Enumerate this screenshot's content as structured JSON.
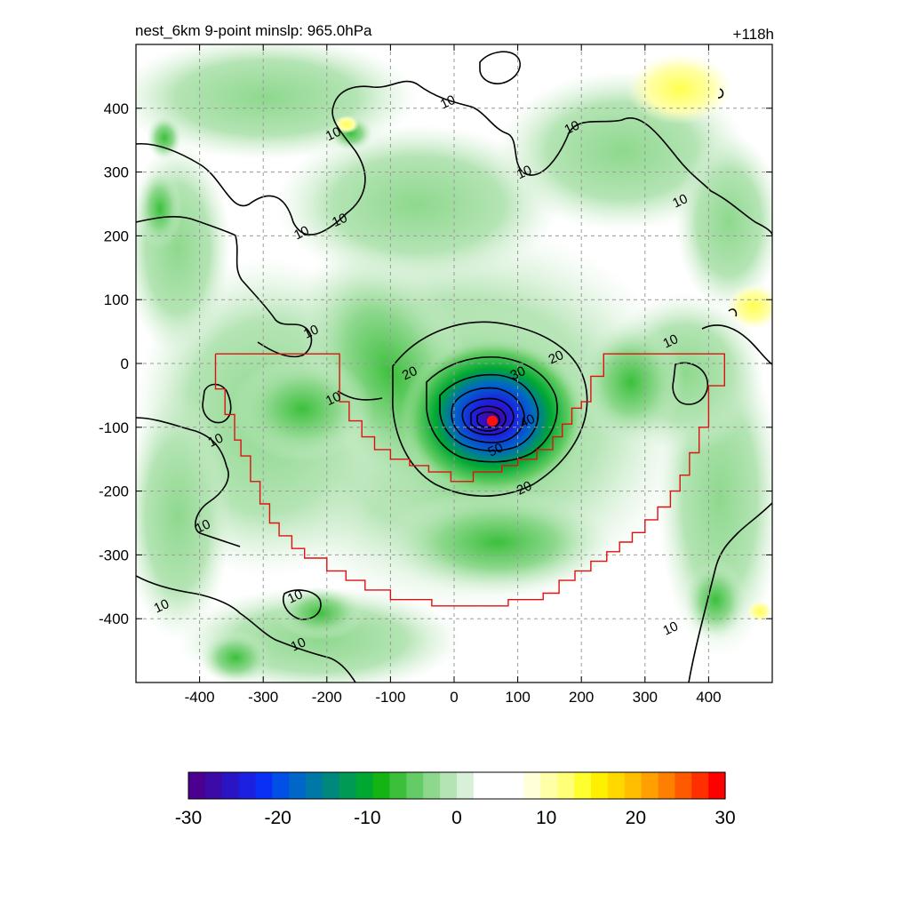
{
  "title_left": "nest_6km  9-point minslp: 965.0hPa",
  "title_right": "+118h",
  "chart_data": {
    "type": "heatmap",
    "xlim": [
      -500,
      500
    ],
    "ylim": [
      -500,
      500
    ],
    "x_ticks": [
      -400,
      -300,
      -200,
      -100,
      0,
      100,
      200,
      300,
      400
    ],
    "y_ticks": [
      400,
      300,
      200,
      100,
      0,
      -100,
      -200,
      -300,
      -400
    ],
    "grid": true,
    "colorbar": {
      "min": -30,
      "max": 30,
      "ticks": [
        "-30",
        "-20",
        "-10",
        "0",
        "10",
        "20",
        "30"
      ],
      "colors": [
        "#4b0092",
        "#3c0aa6",
        "#2a14c4",
        "#1c20e0",
        "#0a30f6",
        "#0050e6",
        "#0066c8",
        "#0078a6",
        "#00887c",
        "#009a55",
        "#00a832",
        "#14b414",
        "#3cc03c",
        "#64cc64",
        "#8ed88e",
        "#b4e4b4",
        "#d8f0d8",
        "#ffffff",
        "#ffffff",
        "#ffffff",
        "#ffffd8",
        "#ffffa8",
        "#ffff78",
        "#ffff30",
        "#ffef00",
        "#ffd800",
        "#ffbe00",
        "#ffa000",
        "#ff8000",
        "#ff5a00",
        "#ff2f00",
        "#ff0000"
      ]
    },
    "contour_labels": [
      {
        "x": -10,
        "y": 410,
        "text": "10"
      },
      {
        "x": -190,
        "y": 360,
        "text": "10"
      },
      {
        "x": -240,
        "y": 205,
        "text": "10"
      },
      {
        "x": -225,
        "y": 50,
        "text": "10"
      },
      {
        "x": -180,
        "y": 225,
        "text": "10"
      },
      {
        "x": 110,
        "y": 300,
        "text": "10"
      },
      {
        "x": 185,
        "y": 370,
        "text": "10"
      },
      {
        "x": 355,
        "y": 255,
        "text": "10"
      },
      {
        "x": 340,
        "y": 35,
        "text": "10"
      },
      {
        "x": -190,
        "y": -55,
        "text": "10"
      },
      {
        "x": -375,
        "y": -120,
        "text": "10"
      },
      {
        "x": -395,
        "y": -255,
        "text": "10"
      },
      {
        "x": -250,
        "y": -365,
        "text": "10"
      },
      {
        "x": -245,
        "y": -440,
        "text": "10"
      },
      {
        "x": -460,
        "y": -380,
        "text": "10"
      },
      {
        "x": 340,
        "y": -415,
        "text": "10"
      },
      {
        "x": -70,
        "y": -15,
        "text": "20"
      },
      {
        "x": 160,
        "y": 10,
        "text": "20"
      },
      {
        "x": 110,
        "y": -195,
        "text": "20"
      },
      {
        "x": 100,
        "y": -15,
        "text": "30"
      },
      {
        "x": 115,
        "y": -90,
        "text": "40"
      },
      {
        "x": 65,
        "y": -135,
        "text": "50"
      }
    ],
    "storm_center": {
      "x": 60,
      "y": -90
    },
    "boundary_polygon": [
      [
        -375,
        15
      ],
      [
        -180,
        15
      ],
      [
        -180,
        -60
      ],
      [
        -165,
        -60
      ],
      [
        -165,
        -90
      ],
      [
        -145,
        -90
      ],
      [
        -145,
        -115
      ],
      [
        -125,
        -115
      ],
      [
        -125,
        -135
      ],
      [
        -100,
        -135
      ],
      [
        -100,
        -150
      ],
      [
        -70,
        -150
      ],
      [
        -70,
        -160
      ],
      [
        -40,
        -160
      ],
      [
        -40,
        -170
      ],
      [
        -5,
        -170
      ],
      [
        -5,
        -185
      ],
      [
        30,
        -185
      ],
      [
        30,
        -170
      ],
      [
        75,
        -170
      ],
      [
        75,
        -160
      ],
      [
        100,
        -160
      ],
      [
        100,
        -150
      ],
      [
        130,
        -150
      ],
      [
        130,
        -135
      ],
      [
        155,
        -135
      ],
      [
        155,
        -115
      ],
      [
        170,
        -115
      ],
      [
        170,
        -95
      ],
      [
        185,
        -95
      ],
      [
        185,
        -70
      ],
      [
        200,
        -70
      ],
      [
        200,
        -60
      ],
      [
        215,
        -60
      ],
      [
        215,
        -20
      ],
      [
        235,
        -20
      ],
      [
        235,
        15
      ],
      [
        425,
        15
      ],
      [
        425,
        -35
      ],
      [
        400,
        -35
      ],
      [
        400,
        -100
      ],
      [
        385,
        -100
      ],
      [
        385,
        -140
      ],
      [
        370,
        -140
      ],
      [
        370,
        -175
      ],
      [
        355,
        -175
      ],
      [
        355,
        -200
      ],
      [
        340,
        -200
      ],
      [
        340,
        -225
      ],
      [
        320,
        -225
      ],
      [
        320,
        -245
      ],
      [
        300,
        -245
      ],
      [
        300,
        -265
      ],
      [
        280,
        -265
      ],
      [
        280,
        -280
      ],
      [
        260,
        -280
      ],
      [
        260,
        -295
      ],
      [
        240,
        -295
      ],
      [
        240,
        -310
      ],
      [
        215,
        -310
      ],
      [
        215,
        -325
      ],
      [
        190,
        -325
      ],
      [
        190,
        -340
      ],
      [
        165,
        -340
      ],
      [
        165,
        -360
      ],
      [
        140,
        -360
      ],
      [
        140,
        -370
      ],
      [
        85,
        -370
      ],
      [
        85,
        -380
      ],
      [
        -35,
        -380
      ],
      [
        -35,
        -370
      ],
      [
        -100,
        -370
      ],
      [
        -100,
        -355
      ],
      [
        -140,
        -355
      ],
      [
        -140,
        -340
      ],
      [
        -170,
        -340
      ],
      [
        -170,
        -325
      ],
      [
        -200,
        -325
      ],
      [
        -200,
        -305
      ],
      [
        -235,
        -305
      ],
      [
        -235,
        -290
      ],
      [
        -255,
        -290
      ],
      [
        -255,
        -270
      ],
      [
        -275,
        -270
      ],
      [
        -275,
        -250
      ],
      [
        -290,
        -250
      ],
      [
        -290,
        -220
      ],
      [
        -305,
        -220
      ],
      [
        -305,
        -185
      ],
      [
        -320,
        -185
      ],
      [
        -320,
        -145
      ],
      [
        -335,
        -145
      ],
      [
        -335,
        -120
      ],
      [
        -345,
        -120
      ],
      [
        -345,
        -80
      ],
      [
        -360,
        -80
      ],
      [
        -360,
        -40
      ],
      [
        -375,
        -40
      ],
      [
        -375,
        15
      ]
    ]
  }
}
